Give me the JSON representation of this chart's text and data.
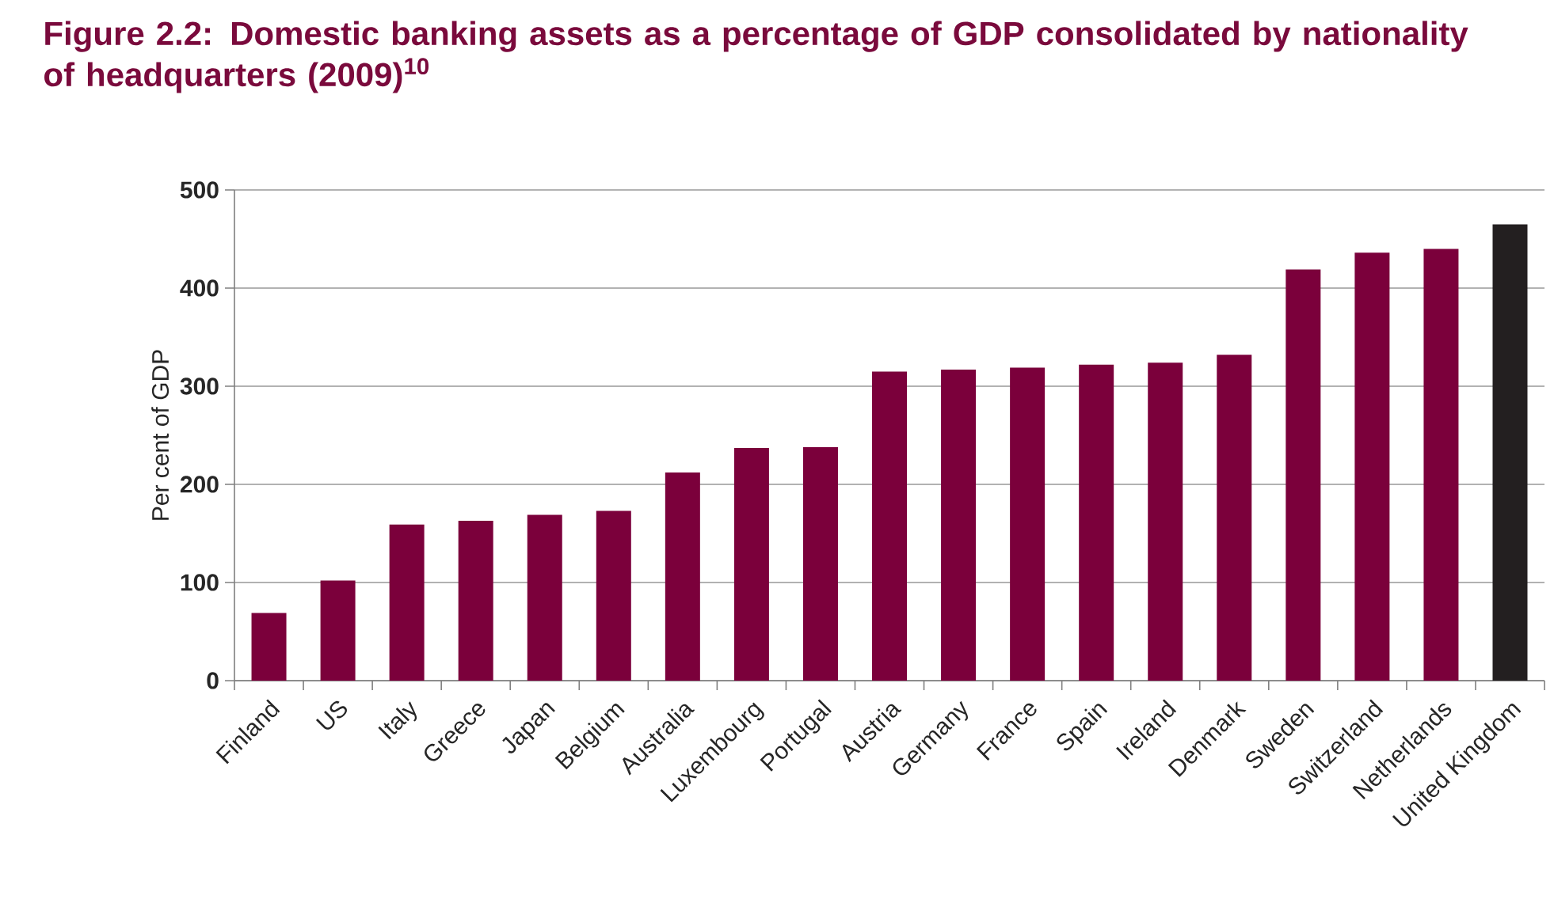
{
  "chart_data": {
    "type": "bar",
    "title": "Figure 2.2: Domestic banking assets as a percentage of GDP consolidated by nationality of headquarters (2009)$^{10}$",
    "ylabel": "Per cent of GDP",
    "categories": [
      "Finland",
      "US",
      "Italy",
      "Greece",
      "Japan",
      "Belgium",
      "Australia",
      "Luxembourg",
      "Portugal",
      "Austria",
      "Germany",
      "France",
      "Spain",
      "Ireland",
      "Denmark",
      "Sweden",
      "Switzerland",
      "Netherlands",
      "United Kingdom"
    ],
    "values": [
      69,
      102,
      159,
      163,
      169,
      173,
      212,
      237,
      238,
      315,
      317,
      319,
      322,
      324,
      332,
      419,
      436,
      440,
      465
    ],
    "colors": [
      "#7b003b",
      "#7b003b",
      "#7b003b",
      "#7b003b",
      "#7b003b",
      "#7b003b",
      "#7b003b",
      "#7b003b",
      "#7b003b",
      "#7b003b",
      "#7b003b",
      "#7b003b",
      "#7b003b",
      "#7b003b",
      "#7b003b",
      "#7b003b",
      "#7b003b",
      "#7b003b",
      "#231f20"
    ],
    "ylim": [
      0,
      500
    ],
    "yticks": [
      0,
      100,
      200,
      300,
      400,
      500
    ],
    "grid": "y"
  }
}
